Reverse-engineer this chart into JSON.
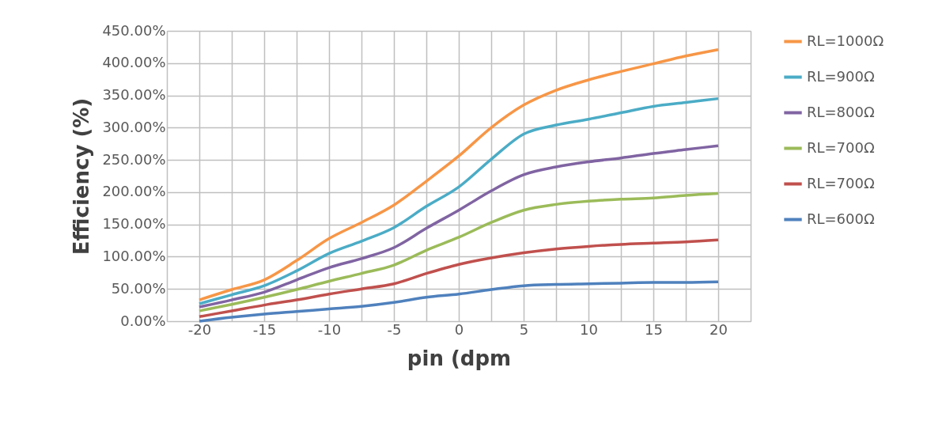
{
  "chart_data": {
    "type": "line",
    "xlabel": "pin (dpm",
    "ylabel": "Efficiency (%)",
    "x": [
      -20,
      -17.5,
      -15,
      -12.5,
      -10,
      -7.5,
      -5,
      -2.5,
      0,
      2.5,
      5,
      7.5,
      10,
      12.5,
      15,
      17.5,
      20
    ],
    "xlim": [
      -22.5,
      22.5
    ],
    "xticks": [
      {
        "value": -22.5,
        "label": null
      },
      -20,
      {
        "value": -17.5,
        "label": null
      },
      -15,
      {
        "value": -12.5,
        "label": null
      },
      -10,
      {
        "value": -7.5,
        "label": null
      },
      -5,
      {
        "value": -2.5,
        "label": null
      },
      0,
      {
        "value": 2.5,
        "label": null
      },
      5,
      {
        "value": 7.5,
        "label": null
      },
      10,
      {
        "value": 12.5,
        "label": null
      },
      15,
      {
        "value": 17.5,
        "label": null
      },
      20,
      {
        "value": 22.5,
        "label": null
      }
    ],
    "ylim": [
      0,
      450
    ],
    "yticks": [
      {
        "value": 0,
        "label": "0.00%"
      },
      {
        "value": 50,
        "label": "50.00%"
      },
      {
        "value": 100,
        "label": "100.00%"
      },
      {
        "value": 150,
        "label": "150.00%"
      },
      {
        "value": 200,
        "label": "200.00%"
      },
      {
        "value": 250,
        "label": "250.00%"
      },
      {
        "value": 300,
        "label": "300.00%"
      },
      {
        "value": 350,
        "label": "350.00%"
      },
      {
        "value": 400,
        "label": "400.00%"
      },
      {
        "value": 450,
        "label": "450.00%"
      }
    ],
    "grid": true,
    "legend": "right",
    "marker": "none",
    "line_style": "solid",
    "series": [
      {
        "name": "RL=1000Ω",
        "color": "#f79646",
        "values": [
          33,
          49,
          64,
          94,
          128,
          153,
          180,
          217,
          256,
          300,
          335,
          358,
          374,
          387,
          399,
          411,
          421
        ]
      },
      {
        "name": "RL=900Ω",
        "color": "#4bacc6",
        "values": [
          27,
          41,
          55,
          78,
          105,
          124,
          145,
          178,
          208,
          251,
          290,
          304,
          313,
          323,
          333,
          339,
          345
        ]
      },
      {
        "name": "RL=800Ω",
        "color": "#8064a2",
        "values": [
          22,
          33,
          45,
          64,
          83,
          97,
          114,
          144,
          172,
          202,
          227,
          239,
          247,
          253,
          260,
          266,
          272
        ]
      },
      {
        "name": "RL=700Ω",
        "color": "#9bbb59",
        "values": [
          16,
          26,
          37,
          49,
          62,
          74,
          87,
          110,
          130,
          153,
          172,
          181,
          186,
          189,
          191,
          195,
          198
        ]
      },
      {
        "name": "RL=700Ω",
        "color": "#c0504d",
        "values": [
          7,
          16,
          25,
          33,
          42,
          50,
          58,
          74,
          88,
          98,
          106,
          112,
          116,
          119,
          121,
          123,
          126
        ]
      },
      {
        "name": "RL=600Ω",
        "color": "#4f81bd",
        "values": [
          0,
          6,
          11,
          15,
          19,
          23,
          29,
          37,
          42,
          49,
          55,
          57,
          58,
          59,
          60,
          60,
          61
        ]
      }
    ]
  }
}
